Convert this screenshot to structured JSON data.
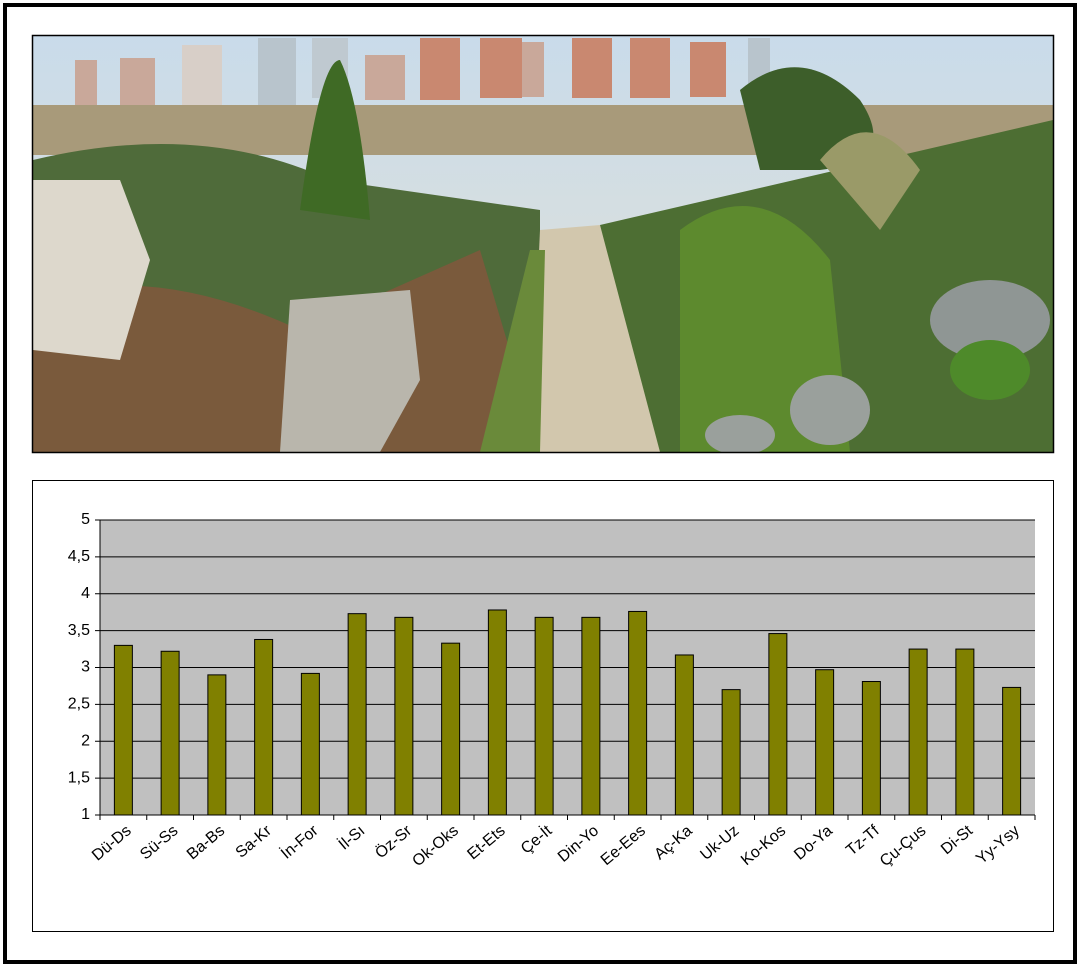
{
  "chart_data": {
    "type": "bar",
    "categories": [
      "Dü-Ds",
      "Sü-Ss",
      "Ba-Bs",
      "Sa-Kr",
      "İn-For",
      "İl-Sı",
      "Öz-Sr",
      "Ok-Oks",
      "Et-Ets",
      "Çe-İt",
      "Din-Yo",
      "Ee-Ees",
      "Aç-Ka",
      "Uk-Uz",
      "Ko-Kos",
      "Do-Ya",
      "Tz-Tf",
      "Çu-Çus",
      "Di-St",
      "Yy-Ysy"
    ],
    "values": [
      3.3,
      3.22,
      2.9,
      3.38,
      2.92,
      3.73,
      3.68,
      3.33,
      3.78,
      3.68,
      3.68,
      3.76,
      3.17,
      2.7,
      3.46,
      2.97,
      2.81,
      3.25,
      3.25,
      2.73
    ],
    "color": "#808000",
    "ylim": [
      1,
      5
    ],
    "yticks": [
      1,
      {
        "value": 1.5,
        "label": "1,5"
      },
      2,
      {
        "value": 2.5,
        "label": "2,5"
      },
      3,
      {
        "value": 3.5,
        "label": "3,5"
      },
      4,
      {
        "value": 4.5,
        "label": "4,5"
      },
      5
    ],
    "grid": true
  }
}
